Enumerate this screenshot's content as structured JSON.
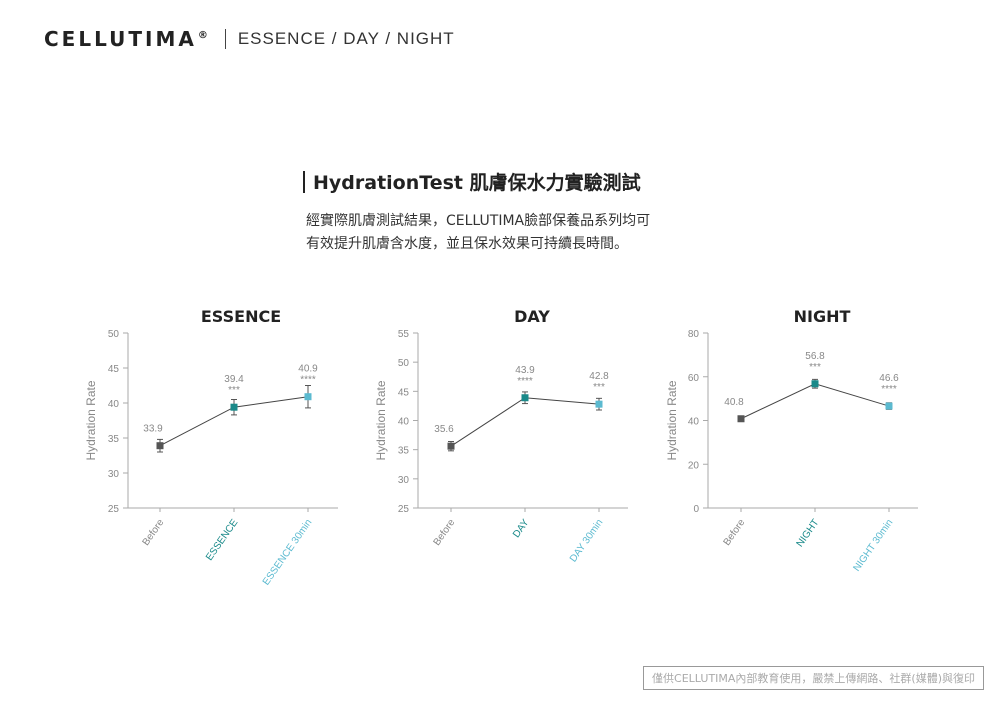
{
  "header": {
    "brand": "CELLUTIMA",
    "registered": "®",
    "subtitle": "ESSENCE / DAY / NIGHT"
  },
  "title": "HydrationTest 肌膚保水力實驗測試",
  "description": [
    "經實際肌膚測試結果，CELLUTIMA臉部保養品系列均可",
    "有效提升肌膚含水度，並且保水效果可持續長時間。"
  ],
  "footer_note": "僅供CELLUTIMA內部教育使用，嚴禁上傳網路、社群(媒體)與復印",
  "colors": {
    "before": "#555555",
    "mid": "#1a8a8a",
    "light": "#5bbad0",
    "line": "#444444",
    "axis": "#aaaaaa",
    "label": "#888888"
  },
  "chart_data": [
    {
      "type": "line",
      "title": "ESSENCE",
      "ylabel": "Hydration Rate",
      "categories": [
        "Before",
        "ESSENCE",
        "ESSENCE 30min"
      ],
      "values": [
        33.9,
        39.4,
        40.9
      ],
      "error": [
        0.9,
        1.1,
        1.6
      ],
      "significance": [
        "",
        "***",
        "****"
      ],
      "ylim": [
        25,
        50
      ],
      "yticks": [
        25,
        30,
        35,
        40,
        45,
        50
      ]
    },
    {
      "type": "line",
      "title": "DAY",
      "ylabel": "Hydration Rate",
      "categories": [
        "Before",
        "DAY",
        "DAY 30min"
      ],
      "values": [
        35.6,
        43.9,
        42.8
      ],
      "error": [
        0.8,
        1.0,
        1.0
      ],
      "significance": [
        "",
        "****",
        "***"
      ],
      "ylim": [
        25,
        55
      ],
      "yticks": [
        25,
        30,
        35,
        40,
        45,
        50,
        55
      ]
    },
    {
      "type": "line",
      "title": "NIGHT",
      "ylabel": "Hydration Rate",
      "categories": [
        "Before",
        "NIGHT",
        "NIGHT 30min"
      ],
      "values": [
        40.8,
        56.8,
        46.6
      ],
      "error": [
        1.2,
        2.0,
        1.5
      ],
      "significance": [
        "",
        "***",
        "****"
      ],
      "ylim": [
        0,
        80
      ],
      "yticks": [
        0,
        20,
        40,
        60,
        80
      ]
    }
  ]
}
